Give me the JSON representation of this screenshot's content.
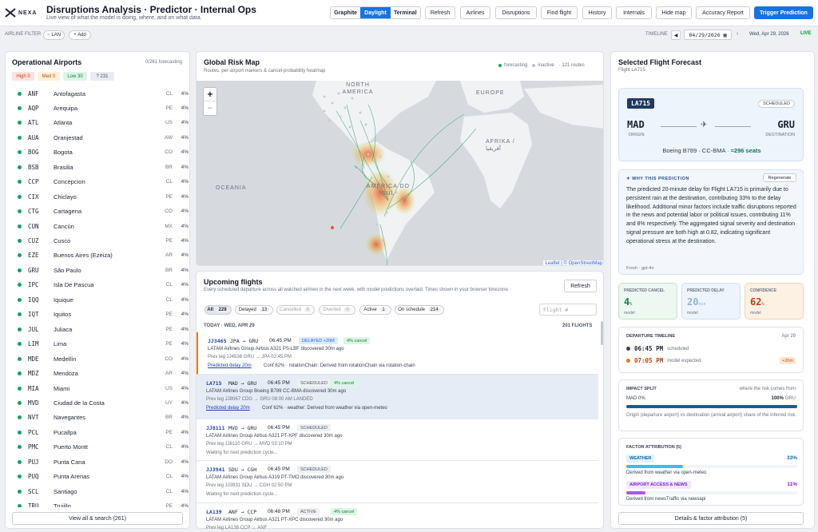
{
  "header": {
    "logo_text": "NEXA",
    "title": "Disruptions Analysis · Predictor · Internal Ops",
    "subtitle": "Live view of what the model is doing, where, and on what data.",
    "themes": [
      "Graphite",
      "Daylight",
      "Terminal"
    ],
    "active_theme": "Daylight",
    "nav": [
      "Refresh",
      "Airlines",
      "Disruptions",
      "Find flight",
      "History",
      "Internals",
      "Hide map",
      "Accuracy Report"
    ],
    "trigger_label": "Trigger Prediction"
  },
  "filter": {
    "label": "AIRLINE FILTER",
    "chip": "LAN",
    "add": "+ Add",
    "timeline_label": "TIMELINE",
    "date_value": "04/29/2026",
    "date_text": "Wed, Apr 29, 2026",
    "live": "LIVE"
  },
  "airports": {
    "title": "Operational Airports",
    "count": "0/261 forecasting",
    "legend": {
      "high": "High 0",
      "med": "Med 0",
      "low": "Low 30",
      "unknown": "? 231"
    },
    "rows": [
      {
        "code": "ANF",
        "name": "Antofagasta",
        "cc": "CL",
        "pct": "4%"
      },
      {
        "code": "AQP",
        "name": "Arequipa",
        "cc": "PE",
        "pct": "4%"
      },
      {
        "code": "ATL",
        "name": "Atlanta",
        "cc": "US",
        "pct": "4%"
      },
      {
        "code": "AUA",
        "name": "Oranjestad",
        "cc": "AW",
        "pct": "4%"
      },
      {
        "code": "BOG",
        "name": "Bogota",
        "cc": "CO",
        "pct": "4%"
      },
      {
        "code": "BSB",
        "name": "Brasilia",
        "cc": "BR",
        "pct": "4%"
      },
      {
        "code": "CCP",
        "name": "Concepcion",
        "cc": "CL",
        "pct": "4%"
      },
      {
        "code": "CIX",
        "name": "Chiclayo",
        "cc": "PE",
        "pct": "4%"
      },
      {
        "code": "CTG",
        "name": "Cartagena",
        "cc": "CO",
        "pct": "4%"
      },
      {
        "code": "CUN",
        "name": "Cancún",
        "cc": "MX",
        "pct": "4%"
      },
      {
        "code": "CUZ",
        "name": "Cusco",
        "cc": "PE",
        "pct": "4%"
      },
      {
        "code": "EZE",
        "name": "Buenos Aires (Ezeiza)",
        "cc": "AR",
        "pct": "4%"
      },
      {
        "code": "GRU",
        "name": "São Paulo",
        "cc": "BR",
        "pct": "4%"
      },
      {
        "code": "IPC",
        "name": "Isla De Pascua",
        "cc": "CL",
        "pct": "4%"
      },
      {
        "code": "IQQ",
        "name": "Iquique",
        "cc": "CL",
        "pct": "4%"
      },
      {
        "code": "IQT",
        "name": "Iquitos",
        "cc": "PE",
        "pct": "4%"
      },
      {
        "code": "JUL",
        "name": "Juliaca",
        "cc": "PE",
        "pct": "4%"
      },
      {
        "code": "LIM",
        "name": "Lima",
        "cc": "PE",
        "pct": "4%"
      },
      {
        "code": "MDE",
        "name": "Medellín",
        "cc": "CO",
        "pct": "4%"
      },
      {
        "code": "MDZ",
        "name": "Mendoza",
        "cc": "AR",
        "pct": "4%"
      },
      {
        "code": "MIA",
        "name": "Miami",
        "cc": "US",
        "pct": "4%"
      },
      {
        "code": "MVD",
        "name": "Ciudad de la Costa",
        "cc": "UY",
        "pct": "4%"
      },
      {
        "code": "NVT",
        "name": "Navegantes",
        "cc": "BR",
        "pct": "4%"
      },
      {
        "code": "PCL",
        "name": "Pucallpa",
        "cc": "PE",
        "pct": "4%"
      },
      {
        "code": "PMC",
        "name": "Puerto Montt",
        "cc": "CL",
        "pct": "4%"
      },
      {
        "code": "PUJ",
        "name": "Punta Cana",
        "cc": "DO",
        "pct": "4%"
      },
      {
        "code": "PUQ",
        "name": "Punta Arenas",
        "cc": "CL",
        "pct": "4%"
      },
      {
        "code": "SCL",
        "name": "Santiago",
        "cc": "CL",
        "pct": "4%"
      },
      {
        "code": "TRU",
        "name": "Trujillo",
        "cc": "PE",
        "pct": "4%"
      }
    ],
    "view_all": "View all & search (261)"
  },
  "map": {
    "title": "Global Risk Map",
    "subtitle": "Routes, per-airport markers & cancel-probability heatmap",
    "legend_forecasting": "forecasting",
    "legend_inactive": "inactive",
    "routes": "· 121 routes",
    "labels": {
      "na": "NORTH AMERICA",
      "eu": "EUROPE",
      "af": "AFRIKA / أفريقيا",
      "oc": "OCEANIA",
      "sa": "AMÉRICA DO SUL"
    },
    "zoom_in": "+",
    "zoom_out": "−",
    "attribution_leaflet": "Leaflet",
    "attribution_osm": "© OpenStreetMap"
  },
  "flights": {
    "title": "Upcoming flights",
    "subtitle": "Every scheduled departure across all watched airlines in the next week, with model predictions overlaid. Times shown in your browser timezone.",
    "refresh": "Refresh",
    "filters": [
      {
        "label": "All",
        "count": "228"
      },
      {
        "label": "Delayed",
        "count": "13"
      },
      {
        "label": "Cancelled",
        "count": "0"
      },
      {
        "label": "Diverted",
        "count": "0"
      },
      {
        "label": "Active",
        "count": "1"
      },
      {
        "label": "On schedule",
        "count": "214"
      }
    ],
    "search_placeholder": "Flight #",
    "day_label": "TODAY · WED, APR 29",
    "day_count": "201 FLIGHTS",
    "rows": [
      {
        "num": "JJ3465",
        "route": "JPA → GRU",
        "time": "06:45 PM",
        "status": "DELAYED +20M",
        "pred": "4% cancel",
        "line2": "LATAM Airlines Group   Airbus A321   PS-LBF   discovered 30m ago",
        "line3": "Prev leg  JJ4536 GRU → JPA  02:45 PM",
        "line4a": "Predicted delay 20m",
        "line4b": "Conf 62%  ·  rotationChain: Derived from rotationChain via rotation-chain"
      },
      {
        "num": "LA715",
        "route": "MAD → GRU",
        "time": "06:45 PM",
        "status": "SCHEDULED",
        "pred": "4% cancel",
        "line2": "LATAM Airlines Group   Boeing B789   CC-BMA   discovered 30m ago",
        "line3": "Prev leg  JJ8067 CDG → GRU  08:00 AM   LANDED",
        "line4a": "Predicted delay 20m",
        "line4b": "Conf 62%  ·  weather: Derived from weather via open-meteo"
      },
      {
        "num": "JJ8111",
        "route": "MVD → GRU",
        "time": "06:45 PM",
        "status": "SCHEDULED",
        "pred": "",
        "line2": "LATAM Airlines Group   Airbus A321   PT-XPF   discovered 30m ago",
        "line3": "Prev leg  JJ8110 GRU → MVD  03:10 PM",
        "line4a": "Waiting for next prediction cycle...",
        "line4b": ""
      },
      {
        "num": "JJ3941",
        "route": "SDU → CGH",
        "time": "06:45 PM",
        "status": "SCHEDULED",
        "pred": "",
        "line2": "LATAM Airlines Group   Airbus A319   PT-TMO   discovered 30m ago",
        "line3": "Prev leg  JJ3931 SDU → CGH  02:50 PM",
        "line4a": "Waiting for next prediction cycle...",
        "line4b": ""
      },
      {
        "num": "LA139",
        "route": "ANF → CCP",
        "time": "06:48 PM",
        "status": "ACTIVE",
        "pred": "4% cancel",
        "line2": "LATAM Airlines Group   Airbus A321   PT-XPC   discovered 30m ago",
        "line3": "Prev leg  LA138 CCP → ANF",
        "line4a": "",
        "line4b": ""
      }
    ]
  },
  "forecast": {
    "title": "Selected Flight Forecast",
    "subtitle": "Flight LA715",
    "flight": "LA715",
    "status": "SCHEDULED",
    "origin": "MAD",
    "origin_label": "ORIGIN",
    "dest": "GRU",
    "dest_label": "DESTINATION",
    "aircraft": "Boeing B789  ·  CC-BMA  ·",
    "seats": "≈296 seats",
    "why_label": "WHY THIS PREDICTION",
    "regenerate": "Regenerate",
    "explanation": "The predicted 20-minute delay for Flight LA715 is primarily due to persistent rain at the destination, contributing 33% to the delay likelihood. Additional minor factors include traffic disruptions reported in the news and potential labor or political issues, contributing 11% and 8% respectively. The aggregated signal severity and destination signal pressure are both high at 0.82, indicating significant operational stress at the destination.",
    "model_note": "Fresh · gpt-4o",
    "metrics": [
      {
        "label": "PREDICTED CANCEL",
        "value": "4",
        "unit": "%",
        "sub": "model"
      },
      {
        "label": "PREDICTED DELAY",
        "value": "20",
        "unit": "min",
        "sub": "model"
      },
      {
        "label": "CONFIDENCE",
        "value": "62",
        "unit": "%",
        "sub": "model"
      }
    ],
    "timeline_title": "DEPARTURE TIMELINE",
    "timeline_date": "Apr 29",
    "scheduled_time": "06:45 PM",
    "scheduled_label": "scheduled",
    "expected_time": "07:05 PM",
    "expected_label": "model expected",
    "expected_badge": "+20m",
    "impact_title": "IMPACT SPLIT",
    "impact_hint": "where the risk comes from",
    "impact_left": "MAD 0%",
    "impact_right_pct": "100%",
    "impact_right_code": "GRU",
    "impact_value": 1.0,
    "impact_note": "Origin (departure airport) vs destination (arrival airport) share of the inferred risk.",
    "factor_title": "FACTOR ATTRIBUTION (5)",
    "factors": [
      {
        "name": "WEATHER",
        "pct": "33%",
        "value": 0.33,
        "desc": "Derived from weather via open-meteo"
      },
      {
        "name": "AIRPORT ACCESS & NEWS",
        "pct": "11%",
        "value": 0.11,
        "desc": "Derived from newsTraffic via newsapi"
      }
    ],
    "details_button": "Details & factor attribution (5)"
  }
}
